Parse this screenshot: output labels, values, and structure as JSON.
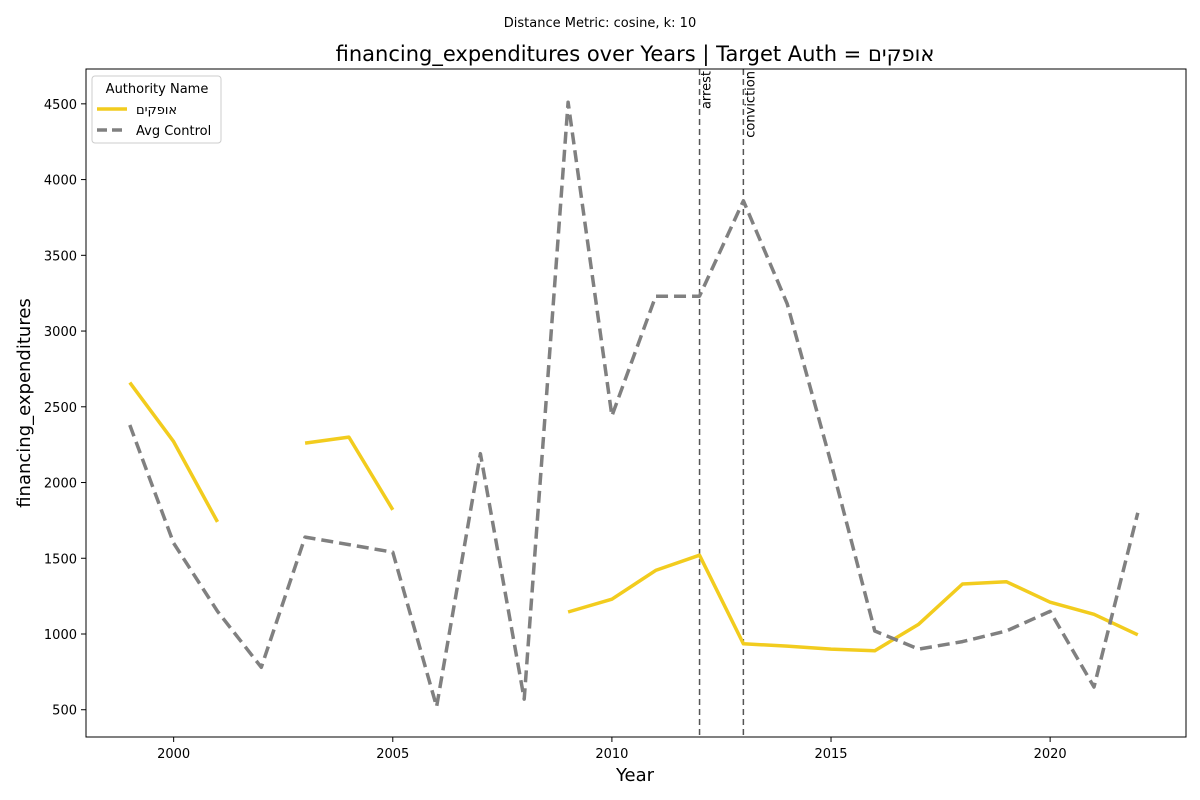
{
  "chart_data": {
    "type": "line",
    "suptitle": "Distance Metric: cosine, k: 10",
    "title": "financing_expenditures over Years | Target Auth = אופקים",
    "xlabel": "Year",
    "ylabel": "financing_expenditures",
    "xlim": [
      1998,
      2023.1
    ],
    "ylim": [
      320,
      4730
    ],
    "xticks": [
      2000,
      2005,
      2010,
      2015,
      2020
    ],
    "yticks": [
      500,
      1000,
      1500,
      2000,
      2500,
      3000,
      3500,
      4000,
      4500
    ],
    "grid": false,
    "legend": {
      "title": "Authority Name",
      "placement": "top-left"
    },
    "series": [
      {
        "name": "אופקים",
        "color": "#f2cc1e",
        "style": "solid",
        "points": [
          [
            1999,
            2660
          ],
          [
            2000,
            2270
          ],
          [
            2001,
            1740
          ],
          [
            2002,
            null
          ],
          [
            2003,
            2260
          ],
          [
            2004,
            2300
          ],
          [
            2005,
            1820
          ],
          [
            2006,
            null
          ],
          [
            2007,
            null
          ],
          [
            2008,
            null
          ],
          [
            2009,
            1145
          ],
          [
            2010,
            1230
          ],
          [
            2011,
            1420
          ],
          [
            2012,
            1520
          ],
          [
            2013,
            935
          ],
          [
            2014,
            920
          ],
          [
            2015,
            900
          ],
          [
            2016,
            890
          ],
          [
            2017,
            1065
          ],
          [
            2018,
            1330
          ],
          [
            2019,
            1345
          ],
          [
            2020,
            1210
          ],
          [
            2021,
            1130
          ],
          [
            2022,
            995
          ]
        ]
      },
      {
        "name": "Avg Control",
        "color": "#808080",
        "style": "dashed",
        "points": [
          [
            1999,
            2380
          ],
          [
            2000,
            1600
          ],
          [
            2001,
            1150
          ],
          [
            2002,
            780
          ],
          [
            2003,
            1640
          ],
          [
            2004,
            1590
          ],
          [
            2005,
            1540
          ],
          [
            2006,
            520
          ],
          [
            2007,
            2190
          ],
          [
            2008,
            570
          ],
          [
            2009,
            4510
          ],
          [
            2010,
            2440
          ],
          [
            2011,
            3230
          ],
          [
            2012,
            3230
          ],
          [
            2013,
            3860
          ],
          [
            2014,
            3180
          ],
          [
            2015,
            2130
          ],
          [
            2016,
            1020
          ],
          [
            2017,
            900
          ],
          [
            2018,
            950
          ],
          [
            2019,
            1020
          ],
          [
            2020,
            1150
          ],
          [
            2021,
            650
          ],
          [
            2022,
            1800
          ]
        ]
      }
    ],
    "events": [
      {
        "x": 2012,
        "label": "arrest"
      },
      {
        "x": 2013,
        "label": "conviction"
      }
    ]
  }
}
